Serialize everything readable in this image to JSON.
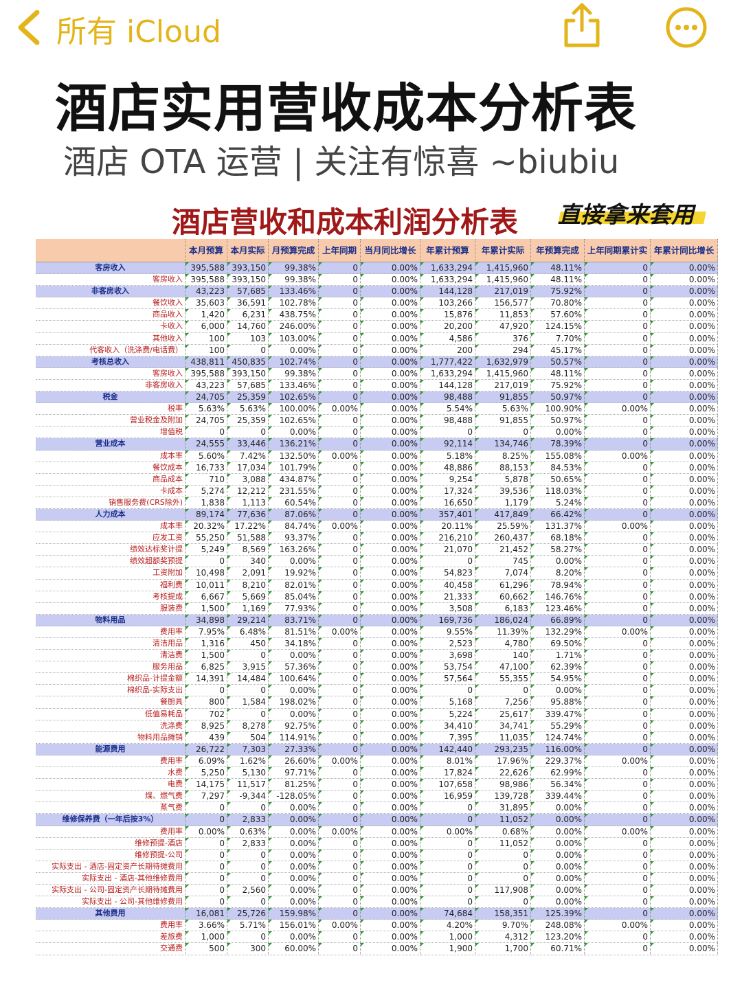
{
  "nav": {
    "back": "所有 iCloud"
  },
  "header": {
    "title": "酒店实用营收成本分析表",
    "subtitle": "酒店 OTA 运营 | 关注有惊喜 ~biubiu"
  },
  "table": {
    "title": "酒店营收和成本利润分析表",
    "badge": "直接拿来套用",
    "columns": [
      "本月预算",
      "本月实际",
      "月预算完成",
      "上年同期",
      "当月同比增长",
      "年累计预算",
      "年累计实际",
      "年预算完成",
      "上年同期累计实",
      "年累计同比增长"
    ],
    "sections": [
      {
        "label": "客房收入",
        "cells": [
          "395,588",
          "393,150",
          "99.38%",
          "0",
          "0.00%",
          "1,633,294",
          "1,415,960",
          "48.11%",
          "0",
          "0.00%"
        ],
        "rows": [
          {
            "label": "客房收入",
            "cells": [
              "395,588",
              "393,150",
              "99.38%",
              "0",
              "0.00%",
              "1,633,294",
              "1,415,960",
              "48.11%",
              "0",
              "0.00%"
            ]
          }
        ]
      },
      {
        "label": "非客房收入",
        "cells": [
          "43,223",
          "57,685",
          "133.46%",
          "0",
          "0.00%",
          "144,128",
          "217,019",
          "75.92%",
          "0",
          "0.00%"
        ],
        "rows": [
          {
            "label": "餐饮收入",
            "cells": [
              "35,603",
              "36,591",
              "102.78%",
              "0",
              "0.00%",
              "103,266",
              "156,577",
              "70.80%",
              "0",
              "0.00%"
            ]
          },
          {
            "label": "商品收入",
            "cells": [
              "1,420",
              "6,231",
              "438.75%",
              "0",
              "0.00%",
              "15,876",
              "11,853",
              "57.60%",
              "0",
              "0.00%"
            ]
          },
          {
            "label": "卡收入",
            "cells": [
              "6,000",
              "14,760",
              "246.00%",
              "0",
              "0.00%",
              "20,200",
              "47,920",
              "124.15%",
              "0",
              "0.00%"
            ]
          },
          {
            "label": "其他收入",
            "cells": [
              "100",
              "103",
              "103.00%",
              "0",
              "0.00%",
              "4,586",
              "376",
              "7.70%",
              "0",
              "0.00%"
            ]
          },
          {
            "label": "代客收入（洗涤费/电话费）",
            "cells": [
              "100",
              "0",
              "0.00%",
              "0",
              "0.00%",
              "200",
              "294",
              "45.17%",
              "0",
              "0.00%"
            ]
          }
        ]
      },
      {
        "label": "考核总收入",
        "cells": [
          "438,811",
          "450,835",
          "102.74%",
          "0",
          "0.00%",
          "1,777,422",
          "1,632,979",
          "50.57%",
          "0",
          "0.00%"
        ],
        "rows": [
          {
            "label": "客房收入",
            "cells": [
              "395,588",
              "393,150",
              "99.38%",
              "0",
              "0.00%",
              "1,633,294",
              "1,415,960",
              "48.11%",
              "0",
              "0.00%"
            ]
          },
          {
            "label": "非客房收入",
            "cells": [
              "43,223",
              "57,685",
              "133.46%",
              "0",
              "0.00%",
              "144,128",
              "217,019",
              "75.92%",
              "0",
              "0.00%"
            ]
          }
        ]
      },
      {
        "label": "税金",
        "cells": [
          "24,705",
          "25,359",
          "102.65%",
          "0",
          "0.00%",
          "98,488",
          "91,855",
          "50.97%",
          "0",
          "0.00%"
        ],
        "rows": [
          {
            "label": "税率",
            "cells": [
              "5.63%",
              "5.63%",
              "100.00%",
              "0.00%",
              "0.00%",
              "5.54%",
              "5.63%",
              "100.90%",
              "0.00%",
              "0.00%"
            ]
          },
          {
            "label": "营业税金及附加",
            "cells": [
              "24,705",
              "25,359",
              "102.65%",
              "0",
              "0.00%",
              "98,488",
              "91,855",
              "50.97%",
              "0",
              "0.00%"
            ]
          },
          {
            "label": "增值税",
            "cells": [
              "0",
              "0",
              "0.00%",
              "0",
              "0.00%",
              "0",
              "0",
              "0.00%",
              "0",
              "0.00%"
            ]
          }
        ]
      },
      {
        "label": "营业成本",
        "cells": [
          "24,555",
          "33,446",
          "136.21%",
          "0",
          "0.00%",
          "92,114",
          "134,746",
          "78.39%",
          "0",
          "0.00%"
        ],
        "rows": [
          {
            "label": "成本率",
            "cells": [
              "5.60%",
              "7.42%",
              "132.50%",
              "0.00%",
              "0.00%",
              "5.18%",
              "8.25%",
              "155.08%",
              "0.00%",
              "0.00%"
            ]
          },
          {
            "label": "餐饮成本",
            "cells": [
              "16,733",
              "17,034",
              "101.79%",
              "0",
              "0.00%",
              "48,886",
              "88,153",
              "84.53%",
              "0",
              "0.00%"
            ]
          },
          {
            "label": "商品成本",
            "cells": [
              "710",
              "3,088",
              "434.87%",
              "0",
              "0.00%",
              "9,254",
              "5,878",
              "50.65%",
              "0",
              "0.00%"
            ]
          },
          {
            "label": "卡成本",
            "cells": [
              "5,274",
              "12,212",
              "231.55%",
              "0",
              "0.00%",
              "17,324",
              "39,536",
              "118.03%",
              "0",
              "0.00%"
            ]
          },
          {
            "label": "销售服务费(CRS除外)",
            "cells": [
              "1,838",
              "1,113",
              "60.54%",
              "0",
              "0.00%",
              "16,650",
              "1,179",
              "5.24%",
              "0",
              "0.00%"
            ]
          }
        ]
      },
      {
        "label": "人力成本",
        "cells": [
          "89,174",
          "77,636",
          "87.06%",
          "0",
          "0.00%",
          "357,401",
          "417,849",
          "66.42%",
          "0",
          "0.00%"
        ],
        "rows": [
          {
            "label": "成本率",
            "cells": [
              "20.32%",
              "17.22%",
              "84.74%",
              "0.00%",
              "0.00%",
              "20.11%",
              "25.59%",
              "131.37%",
              "0.00%",
              "0.00%"
            ]
          },
          {
            "label": "应发工资",
            "cells": [
              "55,250",
              "51,588",
              "93.37%",
              "0",
              "0.00%",
              "216,210",
              "260,437",
              "68.18%",
              "0",
              "0.00%"
            ]
          },
          {
            "label": "绩效达标奖计提",
            "cells": [
              "5,249",
              "8,569",
              "163.26%",
              "0",
              "0.00%",
              "21,070",
              "21,452",
              "58.27%",
              "0",
              "0.00%"
            ]
          },
          {
            "label": "绩效超额奖预提",
            "cells": [
              "0",
              "340",
              "0.00%",
              "0",
              "0.00%",
              "0",
              "745",
              "0.00%",
              "0",
              "0.00%"
            ]
          },
          {
            "label": "工资附加",
            "cells": [
              "10,498",
              "2,091",
              "19.92%",
              "0",
              "0.00%",
              "54,823",
              "7,074",
              "8.20%",
              "0",
              "0.00%"
            ]
          },
          {
            "label": "福利费",
            "cells": [
              "10,011",
              "8,210",
              "82.01%",
              "0",
              "0.00%",
              "40,458",
              "61,296",
              "78.94%",
              "0",
              "0.00%"
            ]
          },
          {
            "label": "考核提成",
            "cells": [
              "6,667",
              "5,669",
              "85.04%",
              "0",
              "0.00%",
              "21,333",
              "60,662",
              "146.76%",
              "0",
              "0.00%"
            ]
          },
          {
            "label": "服装费",
            "cells": [
              "1,500",
              "1,169",
              "77.93%",
              "0",
              "0.00%",
              "3,508",
              "6,183",
              "123.46%",
              "0",
              "0.00%"
            ]
          }
        ]
      },
      {
        "label": "物料用品",
        "cells": [
          "34,898",
          "29,214",
          "83.71%",
          "0",
          "0.00%",
          "169,736",
          "186,024",
          "66.89%",
          "0",
          "0.00%"
        ],
        "rows": [
          {
            "label": "费用率",
            "cells": [
              "7.95%",
              "6.48%",
              "81.51%",
              "0.00%",
              "0.00%",
              "9.55%",
              "11.39%",
              "132.29%",
              "0.00%",
              "0.00%"
            ]
          },
          {
            "label": "清洁用品",
            "cells": [
              "1,316",
              "450",
              "34.18%",
              "0",
              "0.00%",
              "2,523",
              "4,780",
              "69.50%",
              "0",
              "0.00%"
            ]
          },
          {
            "label": "清洁费",
            "cells": [
              "1,500",
              "0",
              "0.00%",
              "0",
              "0.00%",
              "3,698",
              "140",
              "1.71%",
              "0",
              "0.00%"
            ]
          },
          {
            "label": "服务用品",
            "cells": [
              "6,825",
              "3,915",
              "57.36%",
              "0",
              "0.00%",
              "53,754",
              "47,100",
              "62.39%",
              "0",
              "0.00%"
            ]
          },
          {
            "label": "棉织品-计提金额",
            "cells": [
              "14,391",
              "14,484",
              "100.64%",
              "0",
              "0.00%",
              "57,564",
              "55,355",
              "54.95%",
              "0",
              "0.00%"
            ]
          },
          {
            "label": "棉织品-实际支出",
            "cells": [
              "0",
              "0",
              "0.00%",
              "0",
              "0.00%",
              "0",
              "0",
              "0.00%",
              "0",
              "0.00%"
            ]
          },
          {
            "label": "餐厨具",
            "cells": [
              "800",
              "1,584",
              "198.02%",
              "0",
              "0.00%",
              "5,168",
              "7,256",
              "95.88%",
              "0",
              "0.00%"
            ]
          },
          {
            "label": "低值易耗品",
            "cells": [
              "702",
              "0",
              "0.00%",
              "0",
              "0.00%",
              "5,224",
              "25,617",
              "339.47%",
              "0",
              "0.00%"
            ]
          },
          {
            "label": "洗涤费",
            "cells": [
              "8,925",
              "8,278",
              "92.75%",
              "0",
              "0.00%",
              "34,410",
              "34,741",
              "55.29%",
              "0",
              "0.00%"
            ]
          },
          {
            "label": "物料用品摊销",
            "cells": [
              "439",
              "504",
              "114.91%",
              "0",
              "0.00%",
              "7,395",
              "11,035",
              "124.74%",
              "0",
              "0.00%"
            ]
          }
        ]
      },
      {
        "label": "能源费用",
        "cells": [
          "26,722",
          "7,303",
          "27.33%",
          "0",
          "0.00%",
          "142,440",
          "293,235",
          "116.00%",
          "0",
          "0.00%"
        ],
        "rows": [
          {
            "label": "费用率",
            "cells": [
              "6.09%",
              "1.62%",
              "26.60%",
              "0.00%",
              "0.00%",
              "8.01%",
              "17.96%",
              "229.37%",
              "0.00%",
              "0.00%"
            ]
          },
          {
            "label": "水费",
            "cells": [
              "5,250",
              "5,130",
              "97.71%",
              "0",
              "0.00%",
              "17,824",
              "22,626",
              "62.99%",
              "0",
              "0.00%"
            ]
          },
          {
            "label": "电费",
            "cells": [
              "14,175",
              "11,517",
              "81.25%",
              "0",
              "0.00%",
              "107,658",
              "98,986",
              "56.34%",
              "0",
              "0.00%"
            ]
          },
          {
            "label": "煤、燃气费",
            "cells": [
              "7,297",
              "-9,344",
              "-128.05%",
              "0",
              "0.00%",
              "16,959",
              "139,728",
              "339.44%",
              "0",
              "0.00%"
            ]
          },
          {
            "label": "蒸气费",
            "cells": [
              "0",
              "0",
              "0.00%",
              "0",
              "0.00%",
              "0",
              "31,895",
              "0.00%",
              "0",
              "0.00%"
            ]
          }
        ]
      },
      {
        "label": "维修保养费（一年后按3%）",
        "cells": [
          "0",
          "2,833",
          "0.00%",
          "0",
          "0.00%",
          "0",
          "11,052",
          "0.00%",
          "0",
          "0.00%"
        ],
        "rows": [
          {
            "label": "费用率",
            "cells": [
              "0.00%",
              "0.63%",
              "0.00%",
              "0.00%",
              "0.00%",
              "0.00%",
              "0.68%",
              "0.00%",
              "0.00%",
              "0.00%"
            ]
          },
          {
            "label": "维修预提-酒店",
            "cells": [
              "0",
              "2,833",
              "0.00%",
              "0",
              "0.00%",
              "0",
              "11,052",
              "0.00%",
              "0",
              "0.00%"
            ]
          },
          {
            "label": "维修预提-公司",
            "cells": [
              "0",
              "0",
              "0.00%",
              "0",
              "0.00%",
              "0",
              "0",
              "0.00%",
              "0",
              "0.00%"
            ]
          },
          {
            "label": "实际支出 - 酒店-固定资产长期待摊费用",
            "cells": [
              "0",
              "0",
              "0.00%",
              "0",
              "0.00%",
              "0",
              "0",
              "0.00%",
              "0",
              "0.00%"
            ]
          },
          {
            "label": "实际支出 - 酒店-其他维修费用",
            "cells": [
              "0",
              "0",
              "0.00%",
              "0",
              "0.00%",
              "0",
              "0",
              "0.00%",
              "0",
              "0.00%"
            ]
          },
          {
            "label": "实际支出 - 公司-固定资产长期待摊费用",
            "cells": [
              "0",
              "2,560",
              "0.00%",
              "0",
              "0.00%",
              "0",
              "117,908",
              "0.00%",
              "0",
              "0.00%"
            ]
          },
          {
            "label": "实际支出 - 公司-其他维修费用",
            "cells": [
              "0",
              "0",
              "0.00%",
              "0",
              "0.00%",
              "0",
              "0",
              "0.00%",
              "0",
              "0.00%"
            ]
          }
        ]
      },
      {
        "label": "其他费用",
        "cells": [
          "16,081",
          "25,726",
          "159.98%",
          "0",
          "0.00%",
          "74,684",
          "158,351",
          "125.39%",
          "0",
          "0.00%"
        ],
        "rows": [
          {
            "label": "费用率",
            "cells": [
              "3.66%",
              "5.71%",
              "156.01%",
              "0.00%",
              "0.00%",
              "4.20%",
              "9.70%",
              "248.08%",
              "0.00%",
              "0.00%"
            ]
          },
          {
            "label": "差旅费",
            "cells": [
              "1,000",
              "0",
              "0.00%",
              "0",
              "0.00%",
              "1,000",
              "4,312",
              "123.20%",
              "0",
              "0.00%"
            ]
          },
          {
            "label": "交通费",
            "cells": [
              "500",
              "300",
              "60.00%",
              "0",
              "0.00%",
              "1,900",
              "1,700",
              "60.71%",
              "0",
              "0.00%"
            ]
          }
        ]
      }
    ]
  }
}
